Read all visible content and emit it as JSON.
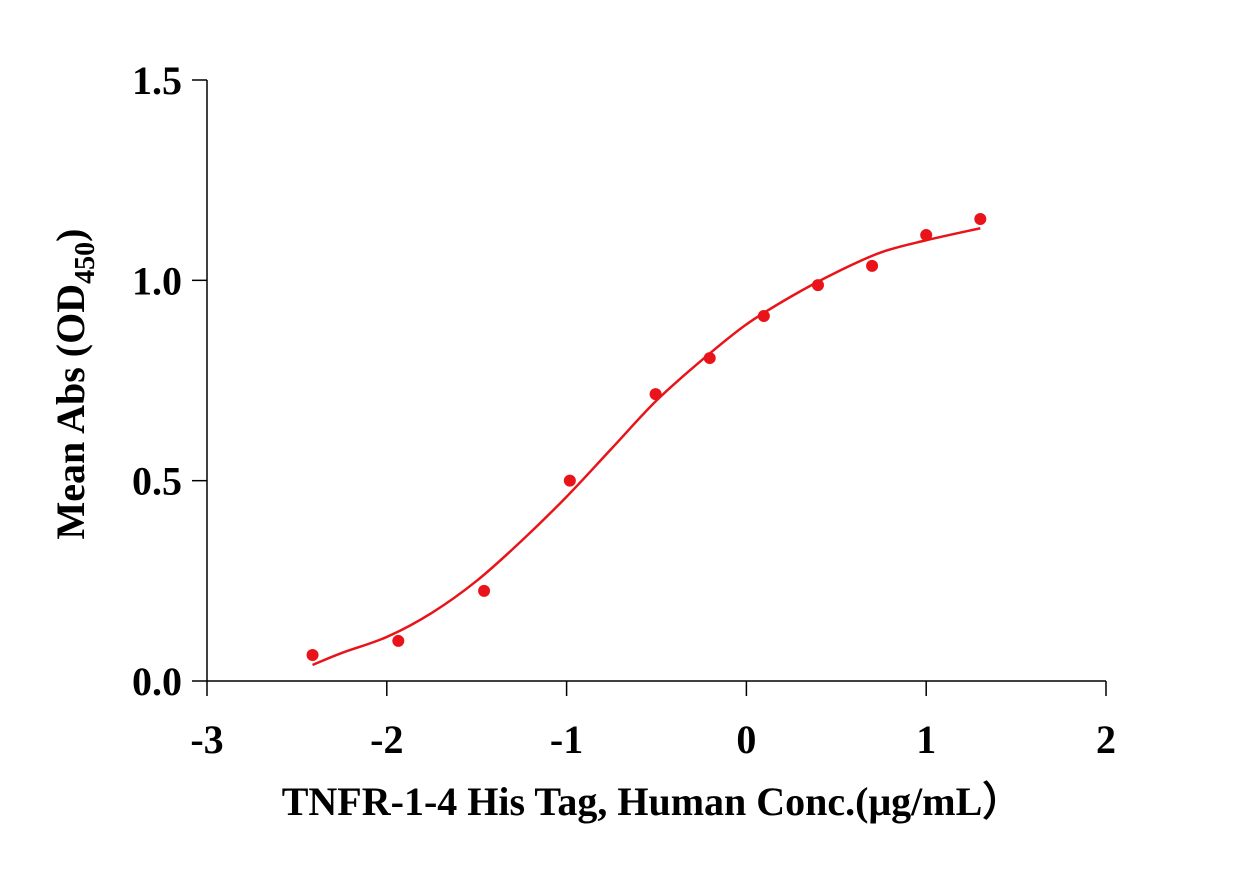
{
  "chart_data": {
    "type": "scatter",
    "y_label": {
      "main": "Mean Abs (OD",
      "sub": "450",
      "end": ")"
    },
    "x_label": "TNFR-1-4 His Tag, Human  Conc.(μg/mL）",
    "xlim": [
      -3,
      2
    ],
    "xticks": [
      -3,
      -2,
      -1,
      0,
      1,
      2
    ],
    "ylim": [
      0,
      1.5
    ],
    "yticks": [
      {
        "value": 0,
        "label": "0.0"
      },
      {
        "value": 0.5,
        "label": "0.5"
      },
      {
        "value": 1,
        "label": "1.0"
      },
      {
        "value": 1.5,
        "label": "1.5"
      }
    ],
    "series": [
      {
        "type": "scatter",
        "color": "#e8141a",
        "x": [
          -2.413,
          -1.936,
          -1.459,
          -0.982,
          -0.505,
          -0.204,
          0.097,
          0.398,
          0.699,
          1,
          1.301
        ],
        "values": [
          0.065,
          0.1,
          0.225,
          0.5,
          0.716,
          0.806,
          0.911,
          0.988,
          1.036,
          1.113,
          1.153
        ]
      },
      {
        "type": "line",
        "color": "#e8141a",
        "x": [
          -2.413,
          -2.25,
          -2,
          -1.75,
          -1.5,
          -1.25,
          -1,
          -0.75,
          -0.5,
          -0.25,
          0,
          0.25,
          0.5,
          0.75,
          1,
          1.301
        ],
        "values": [
          0.04,
          0.07,
          0.11,
          0.17,
          0.25,
          0.35,
          0.46,
          0.58,
          0.7,
          0.8,
          0.89,
          0.96,
          1.02,
          1.07,
          1.1,
          1.13
        ]
      }
    ]
  }
}
